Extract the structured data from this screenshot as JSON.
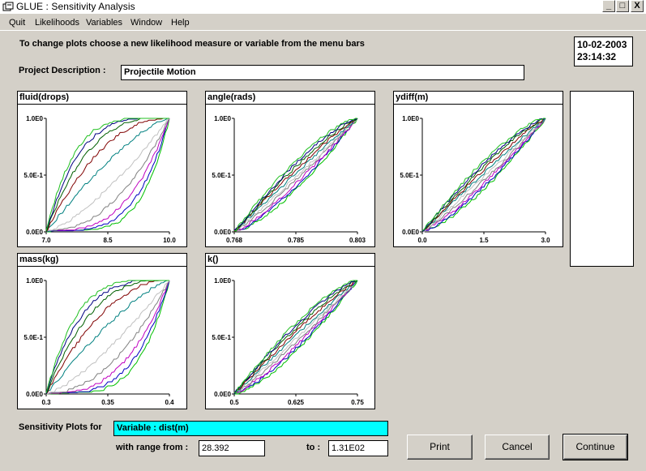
{
  "window": {
    "title": "GLUE : Sensitivity Analysis",
    "min_glyph": "_",
    "max_glyph": "□",
    "close_glyph": "X"
  },
  "menu": [
    {
      "label": "Quit"
    },
    {
      "label": "Likelihoods"
    },
    {
      "label": "Variables"
    },
    {
      "label": "Window"
    },
    {
      "label": "Help"
    }
  ],
  "instruction": "To change plots choose a new likelihood measure or variable from the menu bars",
  "date": "10-02-2003",
  "time": "23:14:32",
  "project": {
    "label": "Project Description :",
    "value": "Projectile Motion"
  },
  "chart_data": [
    {
      "type": "line",
      "title": "fluid(drops)",
      "x_ticks": [
        "7.0",
        "8.5",
        "10.0"
      ],
      "y_ticks": [
        "1.0E0",
        "5.0E-1",
        "0.0E0"
      ],
      "xlim": [
        7.0,
        10.0
      ],
      "ylim": [
        0,
        1
      ],
      "note": "cumulative likelihood-weighted distributions, multiple series (strongly sensitive)"
    },
    {
      "type": "line",
      "title": "angle(rads)",
      "x_ticks": [
        "0.768",
        "0.785",
        "0.803"
      ],
      "y_ticks": [
        "1.0E0",
        "5.0E-1",
        "0.0E0"
      ],
      "xlim": [
        0.768,
        0.803
      ],
      "ylim": [
        0,
        1
      ]
    },
    {
      "type": "line",
      "title": "ydiff(m)",
      "x_ticks": [
        "0.0",
        "1.5",
        "3.0"
      ],
      "y_ticks": [
        "1.0E0",
        "5.0E-1",
        "0.0E0"
      ],
      "xlim": [
        0.0,
        3.0
      ],
      "ylim": [
        0,
        1
      ]
    },
    {
      "type": "line",
      "title": "mass(kg)",
      "x_ticks": [
        "0.3",
        "0.35",
        "0.4"
      ],
      "y_ticks": [
        "1.0E0",
        "5.0E-1",
        "0.0E0"
      ],
      "xlim": [
        0.3,
        0.4
      ],
      "ylim": [
        0,
        1
      ]
    },
    {
      "type": "line",
      "title": "k()",
      "x_ticks": [
        "0.5",
        "0.625",
        "0.75"
      ],
      "y_ticks": [
        "1.0E0",
        "5.0E-1",
        "0.0E0"
      ],
      "xlim": [
        0.5,
        0.75
      ],
      "ylim": [
        0,
        1
      ]
    }
  ],
  "sensitivity": {
    "label": "Sensitivity Plots for",
    "variable": "Variable : dist(m)",
    "range_label": "with range from :",
    "range_from": "28.392",
    "to_label": "to :",
    "range_to": "1.31E02"
  },
  "buttons": {
    "print": "Print",
    "cancel": "Cancel",
    "continue": "Continue"
  },
  "colors": {
    "series": [
      "#00c000",
      "#0000c0",
      "#c000c0",
      "#808080",
      "#c0c0c0",
      "#008080",
      "#800000",
      "#006000",
      "#000080",
      "#20c020"
    ],
    "variable_field": "#00ffff"
  }
}
